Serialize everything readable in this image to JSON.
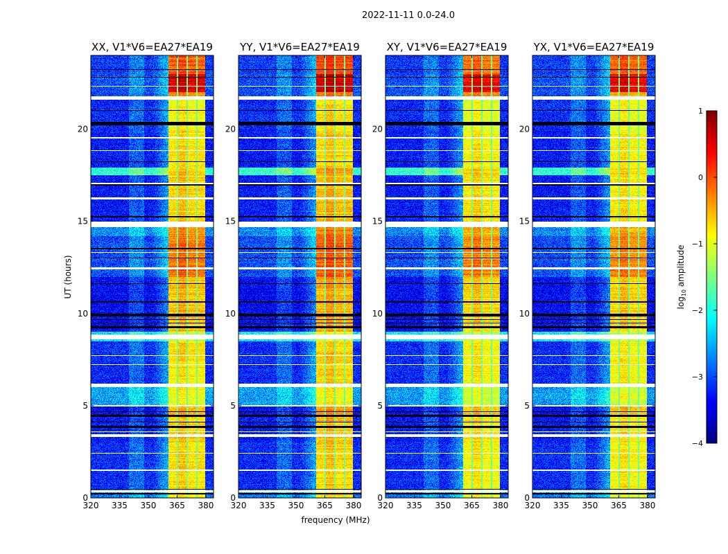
{
  "chart_data": {
    "type": "heatmap",
    "title": "2022-11-11 0.0-24.0",
    "xlabel": "frequency (MHz)",
    "ylabel": "UT (hours)",
    "xlim": [
      320,
      384
    ],
    "ylim": [
      0,
      24
    ],
    "xticks": [
      "320",
      "335",
      "350",
      "365",
      "380"
    ],
    "xtick_values": [
      320,
      335,
      350,
      365,
      380
    ],
    "yticks": [
      "0",
      "5",
      "10",
      "15",
      "20"
    ],
    "ytick_values": [
      0,
      5,
      10,
      15,
      20
    ],
    "panels": [
      {
        "title": "XX, V1*V6=EA27*EA19",
        "band_offset": 0.0
      },
      {
        "title": "YY, V1*V6=EA27*EA19",
        "band_offset": 0.1
      },
      {
        "title": "XY, V1*V6=EA27*EA19",
        "band_offset": -0.1
      },
      {
        "title": "YX, V1*V6=EA27*EA19",
        "band_offset": -0.1
      }
    ],
    "colorbar": {
      "label": "log10 amplitude",
      "label_main": "log",
      "label_sub": "10",
      "label_rest": " amplitude",
      "range": [
        -4,
        1
      ],
      "ticks": [
        "1",
        "0",
        "−1",
        "−2",
        "−3",
        "−4"
      ],
      "tick_values": [
        1,
        0,
        -1,
        -2,
        -3,
        -4
      ],
      "colormap": "jet"
    },
    "rfi_channels_mhz": [
      [
        360.5,
        365.0
      ],
      [
        365.6,
        370.0
      ],
      [
        370.6,
        375.0
      ],
      [
        375.7,
        379.8
      ]
    ],
    "time_segments": [
      {
        "t": [
          0.0,
          0.5
        ],
        "band": -0.9,
        "background": -2.8
      },
      {
        "t": [
          0.5,
          3.0
        ],
        "band": -0.8,
        "background": -3.2
      },
      {
        "t": [
          3.0,
          4.5
        ],
        "band": -0.7,
        "background": -3.3
      },
      {
        "t": [
          4.5,
          5.0
        ],
        "band": -0.5,
        "background": -3.4
      },
      {
        "t": [
          5.0,
          6.0
        ],
        "band": -1.0,
        "background": -2.6
      },
      {
        "t": [
          6.0,
          8.5
        ],
        "band": -0.8,
        "background": -3.2
      },
      {
        "t": [
          8.5,
          9.0
        ],
        "band": -1.2,
        "background": -2.2
      },
      {
        "t": [
          9.0,
          12.0
        ],
        "band": -0.6,
        "background": -3.4
      },
      {
        "t": [
          12.0,
          14.2
        ],
        "band": -0.2,
        "background": -3.0
      },
      {
        "t": [
          14.2,
          15.0
        ],
        "band": -0.4,
        "background": -2.7
      },
      {
        "t": [
          15.0,
          17.5
        ],
        "band": -0.7,
        "background": -3.3
      },
      {
        "t": [
          17.5,
          17.9
        ],
        "band": -0.6,
        "background": -1.9
      },
      {
        "t": [
          17.9,
          20.0
        ],
        "band": -0.8,
        "background": -3.3
      },
      {
        "t": [
          20.0,
          21.6
        ],
        "band": -0.9,
        "background": -3.2
      },
      {
        "t": [
          21.6,
          22.0
        ],
        "band": -0.3,
        "background": -3.0
      },
      {
        "t": [
          22.0,
          23.0
        ],
        "band": 0.5,
        "background": -3.0
      },
      {
        "t": [
          23.0,
          24.0
        ],
        "band": -0.1,
        "background": -3.1
      }
    ],
    "flagged_rows_hours": [
      [
        0.3,
        0.4
      ],
      [
        1.45,
        1.55
      ],
      [
        2.4,
        2.45
      ],
      [
        3.3,
        3.45
      ],
      [
        3.55,
        3.6
      ],
      [
        4.95,
        5.05
      ],
      [
        6.0,
        6.2
      ],
      [
        7.2,
        7.25
      ],
      [
        7.7,
        7.75
      ],
      [
        8.6,
        8.85
      ],
      [
        12.4,
        12.5
      ],
      [
        13.3,
        13.35
      ],
      [
        14.7,
        15.0
      ],
      [
        16.2,
        16.3
      ],
      [
        17.0,
        17.1
      ],
      [
        18.8,
        18.85
      ],
      [
        19.5,
        19.55
      ],
      [
        21.6,
        21.8
      ],
      [
        22.3,
        22.35
      ]
    ],
    "zero_rows_hours": [
      [
        0.2,
        0.27
      ],
      [
        0.45,
        0.5
      ],
      [
        3.8,
        3.9
      ],
      [
        4.1,
        4.15
      ],
      [
        4.4,
        4.5
      ],
      [
        4.65,
        4.7
      ],
      [
        9.2,
        9.3
      ],
      [
        9.45,
        9.5
      ],
      [
        9.65,
        9.7
      ],
      [
        9.85,
        10.0
      ],
      [
        10.6,
        10.65
      ],
      [
        11.6,
        11.65
      ],
      [
        13.0,
        13.05
      ],
      [
        13.5,
        13.55
      ],
      [
        15.2,
        15.3
      ],
      [
        16.95,
        17.0
      ],
      [
        18.2,
        18.25
      ],
      [
        20.2,
        20.4
      ],
      [
        21.0,
        21.05
      ],
      [
        22.8,
        22.85
      ],
      [
        23.2,
        23.25
      ]
    ]
  }
}
